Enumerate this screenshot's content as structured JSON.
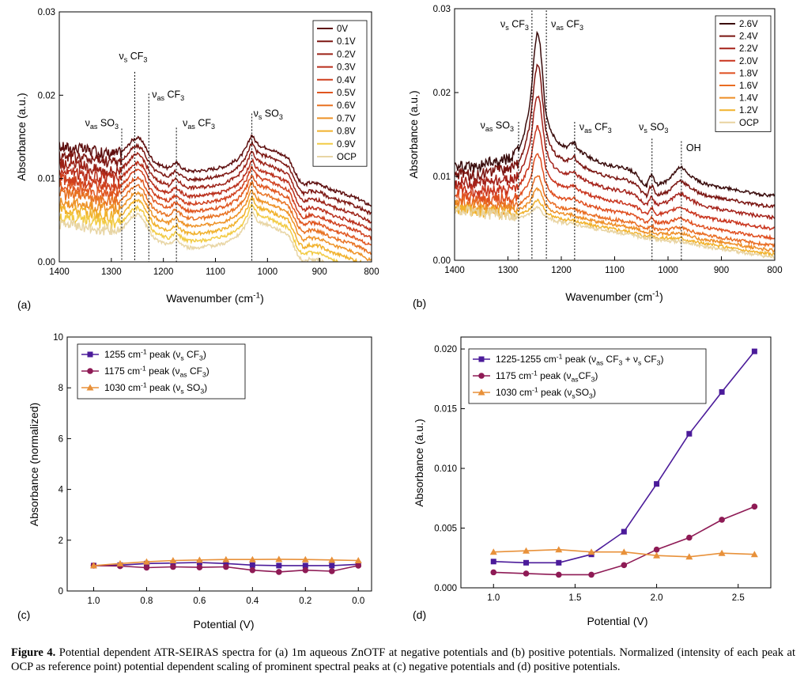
{
  "chart_data": [
    {
      "panel": "(a)",
      "type": "line",
      "xlabel": "Wavenumber (cm⁻¹)",
      "ylabel": "Absorbance (a.u.)",
      "xlim": [
        1400,
        800
      ],
      "ylim": [
        0,
        0.03
      ],
      "xticks": [
        "1400",
        "1300",
        "1200",
        "1100",
        "1000",
        "900",
        "800"
      ],
      "yticks": [
        "0.00",
        "0.01",
        "0.02",
        "0.03"
      ],
      "legend_position": "top-right",
      "series": [
        {
          "name": "0V",
          "color": "#5e0f0f",
          "offset": 0.0
        },
        {
          "name": "0.1V",
          "color": "#7d1712",
          "offset": -0.001
        },
        {
          "name": "0.2V",
          "color": "#9c2116",
          "offset": -0.002
        },
        {
          "name": "0.3V",
          "color": "#b92d1a",
          "offset": -0.003
        },
        {
          "name": "0.4V",
          "color": "#cf3f1d",
          "offset": -0.0039
        },
        {
          "name": "0.5V",
          "color": "#e0561f",
          "offset": -0.0048
        },
        {
          "name": "0.6V",
          "color": "#e87222",
          "offset": -0.0057
        },
        {
          "name": "0.7V",
          "color": "#ee9226",
          "offset": -0.0066
        },
        {
          "name": "0.8V",
          "color": "#f1b12c",
          "offset": -0.0075
        },
        {
          "name": "0.9V",
          "color": "#f2cb45",
          "offset": -0.0084
        },
        {
          "name": "OCP",
          "color": "#e8d5a4",
          "offset": -0.0092
        }
      ],
      "base_curve": {
        "x": [
          1400,
          1380,
          1360,
          1340,
          1320,
          1300,
          1290,
          1280,
          1270,
          1260,
          1250,
          1240,
          1230,
          1220,
          1210,
          1200,
          1190,
          1180,
          1175,
          1170,
          1160,
          1150,
          1140,
          1120,
          1100,
          1080,
          1060,
          1050,
          1040,
          1035,
          1030,
          1025,
          1020,
          1010,
          1000,
          980,
          960,
          950,
          940,
          930,
          920,
          900,
          880,
          860,
          840,
          820,
          810,
          800
        ],
        "y": [
          0.0138,
          0.0137,
          0.0136,
          0.0133,
          0.0131,
          0.013,
          0.013,
          0.0132,
          0.0138,
          0.0146,
          0.0149,
          0.0145,
          0.0132,
          0.0122,
          0.0117,
          0.0115,
          0.0112,
          0.0118,
          0.0119,
          0.0116,
          0.0111,
          0.0109,
          0.0109,
          0.011,
          0.0112,
          0.0115,
          0.0122,
          0.0128,
          0.0138,
          0.0146,
          0.0153,
          0.0147,
          0.0142,
          0.0138,
          0.0137,
          0.0131,
          0.0125,
          0.0112,
          0.0098,
          0.0092,
          0.0095,
          0.0094,
          0.0087,
          0.0083,
          0.0079,
          0.0074,
          0.007,
          0.0068
        ]
      },
      "annotations": [
        {
          "text": "ν",
          "sub": "as",
          "rest": " SO",
          "sub2": "3",
          "x": 1280,
          "line_y": 0.016,
          "label_y": 0.0163
        },
        {
          "text": "ν",
          "sub": "s",
          "rest": " CF",
          "sub2": "3",
          "x": 1255,
          "line_y": 0.0228,
          "label_y": 0.0243
        },
        {
          "text": "ν",
          "sub": "as",
          "rest": " CF",
          "sub2": "3",
          "x": 1228,
          "line_y": 0.0202,
          "label_y": 0.0197
        },
        {
          "text": "ν",
          "sub": "as",
          "rest": " CF",
          "sub2": "3",
          "x": 1175,
          "line_y": 0.0161,
          "label_y": 0.0163
        },
        {
          "text": "ν",
          "sub": "s",
          "rest": " SO",
          "sub2": "3",
          "x": 1030,
          "line_y": 0.0178,
          "label_y": 0.0174
        }
      ]
    },
    {
      "panel": "(b)",
      "type": "line",
      "xlabel": "Wavenumber (cm⁻¹)",
      "ylabel": "Absorbance (a.u.)",
      "xlim": [
        1400,
        800
      ],
      "ylim": [
        0,
        0.03
      ],
      "xticks": [
        "1400",
        "1300",
        "1200",
        "1100",
        "1000",
        "900",
        "800"
      ],
      "yticks": [
        "0.00",
        "0.01",
        "0.02",
        "0.03"
      ],
      "legend_position": "top-right",
      "series": [
        {
          "name": "2.6V",
          "color": "#3a0c0c",
          "scale": 1.0
        },
        {
          "name": "2.4V",
          "color": "#7a1410",
          "scale": 0.84
        },
        {
          "name": "2.2V",
          "color": "#a5221a",
          "scale": 0.68
        },
        {
          "name": "2.0V",
          "color": "#c9341d",
          "scale": 0.52
        },
        {
          "name": "1.8V",
          "color": "#df4e1f",
          "scale": 0.38
        },
        {
          "name": "1.6V",
          "color": "#e96c22",
          "scale": 0.27
        },
        {
          "name": "1.4V",
          "color": "#ee8e26",
          "scale": 0.2
        },
        {
          "name": "1.2V",
          "color": "#f1b22c",
          "scale": 0.14
        },
        {
          "name": "OCP",
          "color": "#e8d3a0",
          "scale": 0.1
        }
      ],
      "base_curve": {
        "x": [
          1400,
          1380,
          1360,
          1340,
          1320,
          1300,
          1290,
          1280,
          1270,
          1260,
          1255,
          1250,
          1245,
          1240,
          1235,
          1230,
          1220,
          1210,
          1200,
          1190,
          1180,
          1175,
          1170,
          1160,
          1150,
          1140,
          1120,
          1100,
          1080,
          1060,
          1050,
          1040,
          1035,
          1030,
          1025,
          1020,
          1000,
          990,
          980,
          975,
          970,
          960,
          940,
          920,
          900,
          880,
          860,
          840,
          820,
          800
        ],
        "y": [
          0.011,
          0.0112,
          0.011,
          0.0115,
          0.0118,
          0.012,
          0.0125,
          0.013,
          0.015,
          0.018,
          0.021,
          0.025,
          0.0272,
          0.026,
          0.022,
          0.018,
          0.0155,
          0.0143,
          0.0138,
          0.0135,
          0.014,
          0.0141,
          0.0134,
          0.0128,
          0.0124,
          0.012,
          0.0115,
          0.0112,
          0.011,
          0.0104,
          0.0094,
          0.0088,
          0.0098,
          0.0103,
          0.0094,
          0.009,
          0.0095,
          0.0103,
          0.011,
          0.0111,
          0.0108,
          0.0102,
          0.0093,
          0.0089,
          0.0087,
          0.0085,
          0.0082,
          0.008,
          0.0078,
          0.0077
        ]
      },
      "annotations": [
        {
          "text": "ν",
          "sub": "s",
          "rest": " CF",
          "sub2": "3",
          "x": 1255,
          "line_y": 0.0298,
          "label_y": 0.0278
        },
        {
          "text": "ν",
          "sub": "as",
          "rest": " CF",
          "sub2": "3",
          "x": 1228,
          "line_y": 0.0298,
          "label_y": 0.0278
        },
        {
          "text": "ν",
          "sub": "as",
          "rest": " SO",
          "sub2": "3",
          "x": 1280,
          "line_y": 0.0165,
          "label_y": 0.0157
        },
        {
          "text": "ν",
          "sub": "as",
          "rest": " CF",
          "sub2": "3",
          "x": 1175,
          "line_y": 0.0165,
          "label_y": 0.0155
        },
        {
          "text": "ν",
          "sub": "s",
          "rest": " SO",
          "sub2": "3",
          "x": 1030,
          "line_y": 0.0145,
          "label_y": 0.0155
        },
        {
          "text": "OH",
          "sub": "",
          "rest": "",
          "sub2": "",
          "x": 975,
          "line_y": 0.0142,
          "label_y": 0.013
        }
      ]
    },
    {
      "panel": "(c)",
      "type": "line",
      "xlabel": "Potential (V)",
      "ylabel": "Absorbance (normalized)",
      "xlim": [
        1.1,
        -0.05
      ],
      "ylim": [
        0,
        10
      ],
      "xticks": [
        "1.0",
        "0.8",
        "0.6",
        "0.4",
        "0.2",
        "0.0"
      ],
      "xtick_values": [
        1.0,
        0.8,
        0.6,
        0.4,
        0.2,
        0.0
      ],
      "yticks": [
        "0",
        "2",
        "4",
        "6",
        "8",
        "10"
      ],
      "ytick_values": [
        0,
        2,
        4,
        6,
        8,
        10
      ],
      "legend_position": "top-left",
      "x": [
        1.0,
        0.9,
        0.8,
        0.7,
        0.6,
        0.5,
        0.4,
        0.3,
        0.2,
        0.1,
        0.0
      ],
      "series": [
        {
          "name_pre": "1255 cm",
          "name_sup": "-1",
          "name_mid": " peak (ν",
          "name_sub": "s",
          "name_post": " CF",
          "name_sub2": "3",
          "name_end": ")",
          "color": "#4b1b9a",
          "marker": "square",
          "values": [
            1.0,
            1.02,
            1.08,
            1.1,
            1.12,
            1.08,
            1.02,
            1.0,
            1.0,
            1.0,
            1.05
          ]
        },
        {
          "name_pre": "1175 cm",
          "name_sup": "-1",
          "name_mid": " peak (ν",
          "name_sub": "as",
          "name_post": " CF",
          "name_sub2": "3",
          "name_end": ")",
          "color": "#8e1a55",
          "marker": "circle",
          "values": [
            1.0,
            0.98,
            0.92,
            0.95,
            0.93,
            0.95,
            0.82,
            0.75,
            0.82,
            0.78,
            1.0
          ]
        },
        {
          "name_pre": "1030 cm",
          "name_sup": "-1",
          "name_mid": " peak (ν",
          "name_sub": "s",
          "name_post": " SO",
          "name_sub2": "3",
          "name_end": ")",
          "color": "#e8913a",
          "marker": "triangle",
          "values": [
            1.0,
            1.08,
            1.15,
            1.2,
            1.22,
            1.24,
            1.24,
            1.25,
            1.24,
            1.22,
            1.2
          ]
        }
      ]
    },
    {
      "panel": "(d)",
      "type": "line",
      "xlabel": "Potential (V)",
      "ylabel": "Absorbance (a.u.)",
      "xlim": [
        0.8,
        2.7
      ],
      "ylim": [
        0,
        0.021
      ],
      "xticks": [
        "1.0",
        "1.5",
        "2.0",
        "2.5"
      ],
      "xtick_values": [
        1.0,
        1.5,
        2.0,
        2.5
      ],
      "yticks": [
        "0.000",
        "0.005",
        "0.010",
        "0.015",
        "0.020"
      ],
      "ytick_values": [
        0,
        0.005,
        0.01,
        0.015,
        0.02
      ],
      "legend_position": "top-left",
      "x": [
        1.0,
        1.2,
        1.4,
        1.6,
        1.8,
        2.0,
        2.2,
        2.4,
        2.6
      ],
      "series": [
        {
          "name_pre": "1225-1255 cm",
          "name_sup": "-1",
          "name_mid": " peak (ν",
          "name_sub": "as",
          "name_post": " CF",
          "name_sub2": "3",
          "name_end": " + ν",
          "name_sub3": "s",
          "name_end2": " CF",
          "name_sub4": "3",
          "name_end3": ")",
          "color": "#4b1b9a",
          "marker": "square",
          "values": [
            0.0022,
            0.0021,
            0.0021,
            0.0028,
            0.0047,
            0.0087,
            0.0129,
            0.0164,
            0.0198
          ]
        },
        {
          "name_pre": "1175 cm",
          "name_sup": "-1",
          "name_mid": " peak (ν",
          "name_sub": "as",
          "name_post": "CF",
          "name_sub2": "3",
          "name_end": ")",
          "color": "#8e1a55",
          "marker": "circle",
          "values": [
            0.0013,
            0.0012,
            0.0011,
            0.0011,
            0.0019,
            0.0032,
            0.0042,
            0.0057,
            0.0068
          ]
        },
        {
          "name_pre": "1030 cm",
          "name_sup": "-1",
          "name_mid": " peak (ν",
          "name_sub": "s",
          "name_post": "SO",
          "name_sub2": "3",
          "name_end": ")",
          "color": "#e8913a",
          "marker": "triangle",
          "values": [
            0.003,
            0.0031,
            0.0032,
            0.003,
            0.003,
            0.0027,
            0.0026,
            0.0029,
            0.0028
          ]
        }
      ]
    }
  ],
  "caption": {
    "label": "Figure 4.",
    "text": " Potential dependent ATR-SEIRAS spectra for (a) 1m aqueous ZnOTF at negative potentials and (b) positive potentials. Normalized (intensity of each peak at OCP as reference point) potential dependent scaling of prominent spectral peaks at (c) negative potentials and (d) positive potentials."
  }
}
